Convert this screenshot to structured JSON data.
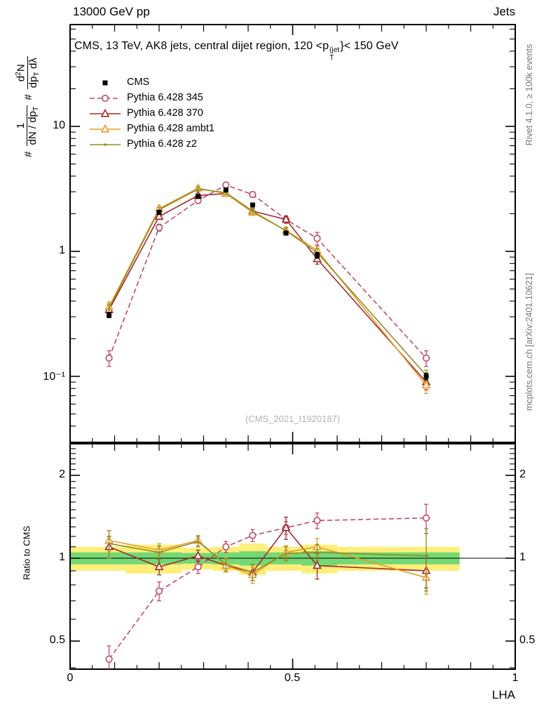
{
  "header": {
    "left": "13000 GeV pp",
    "right": "Jets"
  },
  "title_parts": {
    "pre": "CMS, 13 TeV, AK8 jets, central dijet region, 120 <",
    "base": "p",
    "sup": "{jet",
    "sub": "T",
    "post": "}< 150 GeV"
  },
  "watermark": "(CMS_2021_I1920187)",
  "side_notes": {
    "top_right": "Rivet 4.1.0, ≥ 100k events",
    "bottom_right": "mcplots.cern.ch [arXiv:2401.10621]"
  },
  "axis_labels": {
    "x": "LHA",
    "ratio_y": "Ratio to CMS"
  },
  "main_ylabel_parts": {
    "hash1": "#",
    "frac1_num": "1",
    "frac1_den_main": "dN / dp",
    "frac1_den_sub": "T",
    "hash2": "#",
    "frac2_num_main": "d",
    "frac2_num_sup": "2",
    "frac2_num_tail": "N",
    "frac2_den_main": "dp",
    "frac2_den_sub": "T",
    "frac2_den_tail": " dλ"
  },
  "tick_labels": {
    "main_y": [
      "10",
      "1",
      "10⁻¹"
    ],
    "ratio_y": [
      "2",
      "1",
      "0.5"
    ],
    "x": [
      "0",
      "0.5",
      "1"
    ]
  },
  "chart_data": [
    {
      "type": "line",
      "panel": "main",
      "y_scale": "log",
      "xlim": [
        0,
        1
      ],
      "ylim": [
        0.031,
        65
      ],
      "xlabel": "LHA",
      "ylabel": "# 1/(dN/dp_T) # d²N/(dp_T dλ)",
      "title": "CMS, 13 TeV, AK8 jets, central dijet region, 120 < pT{jet} < 150 GeV",
      "legend_position": "top-left",
      "x": [
        0.0875,
        0.2,
        0.2875,
        0.35,
        0.41,
        0.485,
        0.555,
        0.8
      ],
      "series": [
        {
          "name": "CMS",
          "color": "#000000",
          "marker": "square-filled",
          "line": "none",
          "values": [
            0.31,
            2.05,
            2.75,
            3.1,
            2.35,
            1.4,
            0.93,
            0.1
          ],
          "yerr": [
            0.015,
            0.07,
            0.08,
            0.08,
            0.07,
            0.05,
            0.05,
            0.006
          ]
        },
        {
          "name": "Pythia 6.428 345",
          "color": "#c24a66",
          "marker": "circle-open",
          "line": "dashed",
          "values": [
            0.14,
            1.55,
            2.55,
            3.4,
            2.85,
            1.8,
            1.27,
            0.14
          ],
          "yerr": [
            0.02,
            0.1,
            0.12,
            0.15,
            0.15,
            0.12,
            0.15,
            0.02
          ]
        },
        {
          "name": "Pythia 6.428 370",
          "color": "#a22b2b",
          "marker": "triangle-open",
          "line": "solid",
          "values": [
            0.34,
            1.9,
            2.8,
            2.9,
            2.1,
            1.8,
            0.87,
            0.09
          ],
          "yerr": [
            0.03,
            0.1,
            0.12,
            0.13,
            0.11,
            0.12,
            0.08,
            0.012
          ]
        },
        {
          "name": "Pythia 6.428 ambt1",
          "color": "#e89b26",
          "marker": "triangle-open",
          "line": "solid",
          "values": [
            0.36,
            2.2,
            3.2,
            2.9,
            2.05,
            1.47,
            1.02,
            0.085
          ],
          "yerr": [
            0.035,
            0.12,
            0.14,
            0.13,
            0.11,
            0.09,
            0.08,
            0.012
          ]
        },
        {
          "name": "Pythia 6.428 z2",
          "color": "#8e8d25",
          "marker": "dot",
          "line": "solid",
          "values": [
            0.35,
            2.15,
            3.15,
            2.95,
            2.1,
            1.46,
            0.98,
            0.102
          ],
          "yerr": [
            0.03,
            0.1,
            0.12,
            0.12,
            0.1,
            0.08,
            0.07,
            0.01
          ]
        }
      ]
    },
    {
      "type": "ratio",
      "panel": "ratio",
      "y_scale": "log",
      "ylim": [
        0.395,
        2.6
      ],
      "reference": "CMS",
      "ylabel": "Ratio to CMS",
      "x": [
        0.0875,
        0.2,
        0.2875,
        0.35,
        0.41,
        0.485,
        0.555,
        0.8
      ],
      "bands": {
        "yellow_color": "#ffef7a",
        "green_color": "#74d874",
        "bins": [
          {
            "x0": 0.0,
            "x1": 0.125,
            "yellow": 0.1,
            "green": 0.05
          },
          {
            "x0": 0.125,
            "x1": 0.25,
            "yellow": 0.12,
            "green": 0.05
          },
          {
            "x0": 0.25,
            "x1": 0.32,
            "yellow": 0.09,
            "green": 0.045
          },
          {
            "x0": 0.32,
            "x1": 0.38,
            "yellow": 0.1,
            "green": 0.05
          },
          {
            "x0": 0.38,
            "x1": 0.44,
            "yellow": 0.13,
            "green": 0.06
          },
          {
            "x0": 0.44,
            "x1": 0.52,
            "yellow": 0.1,
            "green": 0.05
          },
          {
            "x0": 0.52,
            "x1": 0.6,
            "yellow": 0.12,
            "green": 0.06
          },
          {
            "x0": 0.6,
            "x1": 0.875,
            "yellow": 0.1,
            "green": 0.05
          }
        ]
      },
      "series": [
        {
          "name": "Pythia 6.428 345",
          "color": "#c24a66",
          "marker": "circle-open",
          "line": "dashed",
          "values": [
            0.43,
            0.76,
            0.93,
            1.1,
            1.21,
            1.29,
            1.37,
            1.4
          ],
          "yerr": [
            0.05,
            0.06,
            0.05,
            0.05,
            0.06,
            0.07,
            0.09,
            0.17
          ]
        },
        {
          "name": "Pythia 6.428 370",
          "color": "#a22b2b",
          "marker": "triangle-open",
          "line": "solid",
          "values": [
            1.1,
            0.93,
            1.02,
            0.94,
            0.89,
            1.29,
            0.94,
            0.9
          ],
          "yerr": [
            0.1,
            0.06,
            0.05,
            0.05,
            0.06,
            0.12,
            0.1,
            0.12
          ]
        },
        {
          "name": "Pythia 6.428 ambt1",
          "color": "#e89b26",
          "marker": "triangle-open",
          "line": "solid",
          "values": [
            1.16,
            1.07,
            1.16,
            0.94,
            0.87,
            1.05,
            1.1,
            0.85
          ],
          "yerr": [
            0.1,
            0.06,
            0.05,
            0.05,
            0.06,
            0.06,
            0.08,
            0.11
          ]
        },
        {
          "name": "Pythia 6.428 z2",
          "color": "#8e8d25",
          "marker": "dot",
          "line": "solid",
          "values": [
            1.13,
            1.05,
            1.15,
            0.95,
            0.89,
            1.04,
            1.05,
            1.02
          ],
          "yerr": [
            0.13,
            0.06,
            0.05,
            0.05,
            0.06,
            0.06,
            0.07,
            0.26
          ]
        }
      ]
    }
  ]
}
